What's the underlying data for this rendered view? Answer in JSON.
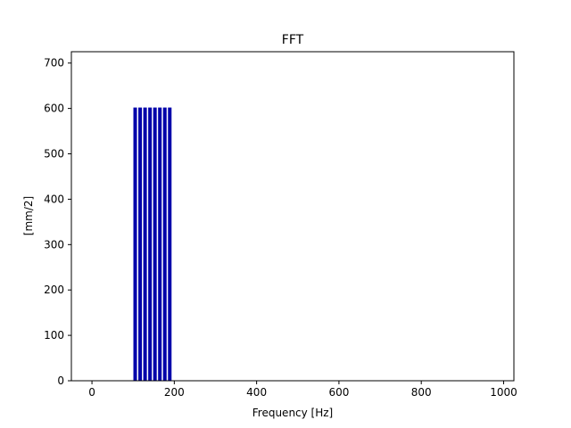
{
  "chart_data": {
    "type": "bar",
    "title": "FFT",
    "xlabel": "Frequency [Hz]",
    "ylabel": "[mm/2]",
    "xlim": [
      -50,
      1025
    ],
    "ylim": [
      0,
      725
    ],
    "xticks": [
      0,
      200,
      400,
      600,
      800,
      1000
    ],
    "yticks": [
      0,
      100,
      200,
      300,
      400,
      500,
      600,
      700
    ],
    "bar_color": "#0000aa",
    "bar_width": 4,
    "grid": false,
    "series": [
      {
        "x": [
          105,
          117,
          129,
          141,
          153,
          165,
          177,
          189
        ],
        "values": [
          602,
          602,
          602,
          602,
          602,
          602,
          602,
          602
        ]
      }
    ]
  }
}
